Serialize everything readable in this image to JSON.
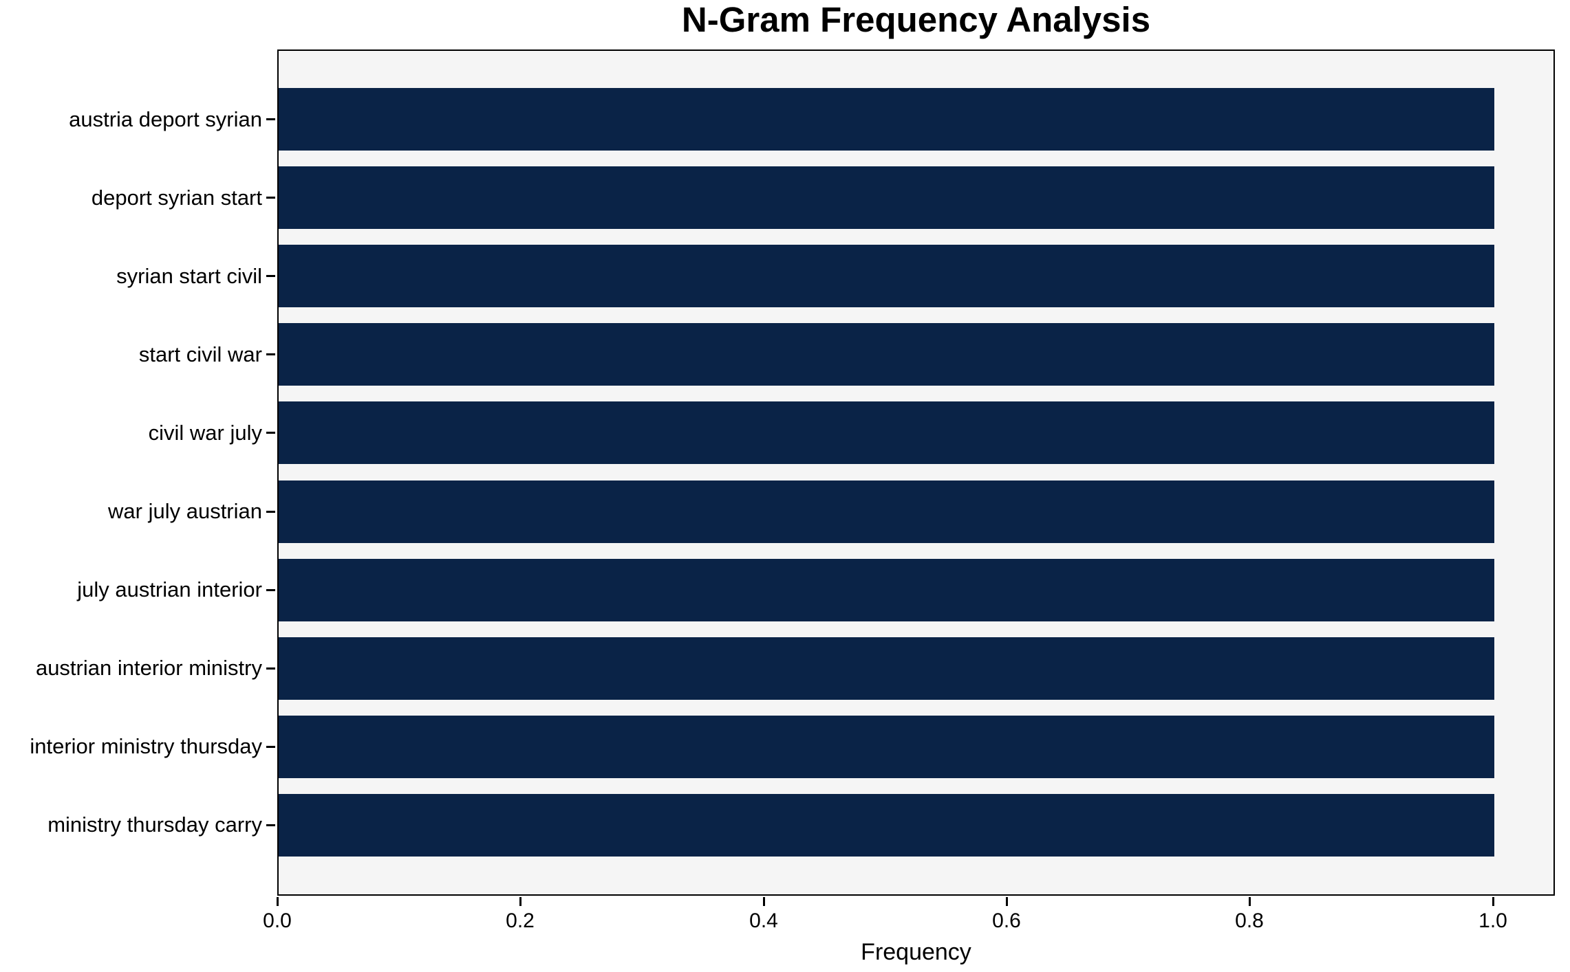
{
  "title": "N-Gram Frequency Analysis",
  "chart_data": {
    "type": "bar",
    "orientation": "horizontal",
    "title": "N-Gram Frequency Analysis",
    "xlabel": "Frequency",
    "ylabel": "",
    "categories": [
      "austria deport syrian",
      "deport syrian start",
      "syrian start civil",
      "start civil war",
      "civil war july",
      "war july austrian",
      "july austrian interior",
      "austrian interior ministry",
      "interior ministry thursday",
      "ministry thursday carry"
    ],
    "values": [
      1.0,
      1.0,
      1.0,
      1.0,
      1.0,
      1.0,
      1.0,
      1.0,
      1.0,
      1.0
    ],
    "xlim": [
      0.0,
      1.05
    ],
    "xticks": [
      0.0,
      0.2,
      0.4,
      0.6,
      0.8,
      1.0
    ],
    "xtick_labels": [
      "0.0",
      "0.2",
      "0.4",
      "0.6",
      "0.8",
      "1.0"
    ],
    "grid": false,
    "legend": false,
    "bar_color": "#0a2347",
    "plot_background": "#f5f5f5",
    "figure_background": "#ffffff",
    "axis_color": "#000000"
  }
}
